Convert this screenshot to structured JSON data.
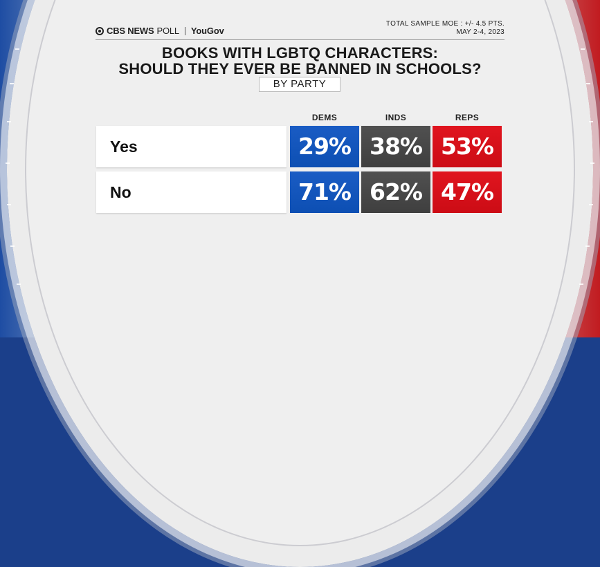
{
  "header": {
    "logo_main": "CBS NEWS",
    "logo_poll": "POLL",
    "logo_partner": "YouGov",
    "moe_line1": "TOTAL SAMPLE MOE : +/- 4.5 PTS.",
    "moe_line2": "MAY 2-4, 2023"
  },
  "chart_data": {
    "type": "table",
    "title_line1": "BOOKS WITH LGBTQ CHARACTERS:",
    "title_line2": "SHOULD THEY EVER BE BANNED IN SCHOOLS?",
    "subtitle": "BY PARTY",
    "columns": [
      "DEMS",
      "INDS",
      "REPS"
    ],
    "rows": [
      {
        "label": "Yes",
        "values": [
          "29%",
          "38%",
          "53%"
        ]
      },
      {
        "label": "No",
        "values": [
          "71%",
          "62%",
          "47%"
        ]
      }
    ],
    "colors": {
      "DEMS": "#0d4fb3",
      "INDS": "#444444",
      "REPS": "#d0101a"
    }
  }
}
